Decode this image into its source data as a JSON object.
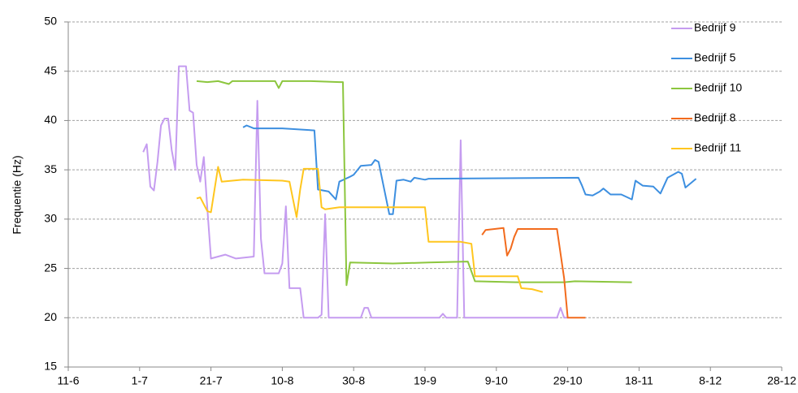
{
  "chart_data": {
    "type": "line",
    "ylabel": "Frequentie (Hz)",
    "xlim": [
      "11-6",
      "28-12"
    ],
    "xticks": [
      "11-6",
      "1-7",
      "21-7",
      "10-8",
      "30-8",
      "19-9",
      "9-10",
      "29-10",
      "18-11",
      "8-12",
      "28-12"
    ],
    "ylim": [
      15,
      50
    ],
    "yticks": [
      15,
      20,
      25,
      30,
      35,
      40,
      45,
      50
    ],
    "grid": true,
    "legend": "upper right",
    "series": [
      {
        "name": "Bedrijf 9",
        "color": "#c59cf0",
        "x": [
          "2-7",
          "3-7",
          "4-7",
          "5-7",
          "6-7",
          "7-7",
          "8-7",
          "9-7",
          "10-7",
          "11-7",
          "12-7",
          "14-7",
          "15-7",
          "16-7",
          "17-7",
          "18-7",
          "19-7",
          "20-7",
          "21-7",
          "25-7",
          "28-7",
          "2-8",
          "3-8",
          "4-8",
          "5-8",
          "9-8",
          "10-8",
          "11-8",
          "12-8",
          "15-8",
          "16-8",
          "20-8",
          "21-8",
          "22-8",
          "23-8",
          "1-9",
          "2-9",
          "3-9",
          "4-9",
          "23-9",
          "24-9",
          "25-9",
          "28-9",
          "29-9",
          "30-9",
          "26-10",
          "27-10",
          "28-10",
          "29-10"
        ],
        "values": [
          36.8,
          37.6,
          33.3,
          32.9,
          35.8,
          39.5,
          40.2,
          40.2,
          37,
          35,
          45.5,
          45.5,
          41,
          40.8,
          35.5,
          33.8,
          36.3,
          31,
          26,
          26.4,
          26,
          26.2,
          42,
          28,
          24.5,
          24.5,
          25.5,
          31.3,
          23,
          23,
          20,
          20,
          20.3,
          30.5,
          20,
          20,
          21,
          21,
          20,
          20,
          20.4,
          20,
          20,
          38,
          20,
          20,
          21,
          20,
          20
        ]
      },
      {
        "name": "Bedrijf 5",
        "color": "#3d8fe0",
        "x": [
          "30-7",
          "31-7",
          "2-8",
          "10-8",
          "19-8",
          "20-8",
          "23-8",
          "25-8",
          "26-8",
          "29-8",
          "30-8",
          "1-9",
          "4-9",
          "5-9",
          "6-9",
          "9-9",
          "10-9",
          "11-9",
          "13-9",
          "15-9",
          "16-9",
          "19-9",
          "20-9",
          "1-11",
          "2-11",
          "3-11",
          "5-11",
          "7-11",
          "8-11",
          "10-11",
          "13-11",
          "16-11",
          "17-11",
          "19-11",
          "22-11",
          "24-11",
          "26-11",
          "29-11",
          "30-11",
          "1-12",
          "4-12"
        ],
        "values": [
          39.3,
          39.5,
          39.2,
          39.2,
          39,
          33,
          32.8,
          32,
          33.8,
          34.3,
          34.5,
          35.4,
          35.5,
          36,
          35.8,
          30.5,
          30.5,
          33.9,
          34,
          33.8,
          34.2,
          34,
          34.1,
          34.2,
          33.4,
          32.5,
          32.4,
          32.8,
          33.1,
          32.5,
          32.5,
          32,
          33.9,
          33.4,
          33.3,
          32.6,
          34.2,
          34.8,
          34.6,
          33.2,
          34.1
        ]
      },
      {
        "name": "Bedrijf 10",
        "color": "#8cc63e",
        "x": [
          "17-7",
          "20-7",
          "23-7",
          "26-7",
          "27-7",
          "30-7",
          "8-8",
          "9-8",
          "10-8",
          "18-8",
          "26-8",
          "27-8",
          "28-8",
          "29-8",
          "10-9",
          "20-9",
          "1-10",
          "3-10",
          "15-10",
          "28-10",
          "31-10",
          "16-11"
        ],
        "values": [
          44,
          43.9,
          44,
          43.7,
          44,
          44,
          44,
          43.3,
          44,
          44,
          43.9,
          43.9,
          23.3,
          25.6,
          25.5,
          25.6,
          25.7,
          23.7,
          23.6,
          23.6,
          23.7,
          23.6
        ]
      },
      {
        "name": "Bedrijf 8",
        "color": "#f26b1d",
        "x": [
          "5-10",
          "6-10",
          "11-10",
          "12-10",
          "13-10",
          "14-10",
          "15-10",
          "26-10",
          "27-10",
          "28-10",
          "29-10",
          "31-10",
          "3-11"
        ],
        "values": [
          28.4,
          28.9,
          29.1,
          26.3,
          27,
          28.2,
          29,
          29,
          26.5,
          24,
          20,
          20,
          20
        ]
      },
      {
        "name": "Bedrijf 11",
        "color": "#ffc61e",
        "x": [
          "17-7",
          "18-7",
          "20-7",
          "21-7",
          "22-7",
          "23-7",
          "24-7",
          "30-7",
          "10-8",
          "12-8",
          "13-8",
          "14-8",
          "15-8",
          "16-8",
          "20-8",
          "21-8",
          "22-8",
          "26-8",
          "30-8",
          "5-9",
          "19-9",
          "20-9",
          "29-9",
          "2-10",
          "3-10",
          "15-10",
          "16-10",
          "19-10",
          "22-10"
        ],
        "values": [
          32.1,
          32.2,
          30.8,
          30.7,
          33,
          35.3,
          33.8,
          34,
          33.9,
          33.8,
          32,
          30.2,
          33,
          35.1,
          35.1,
          31.2,
          31,
          31.2,
          31.2,
          31.2,
          31.2,
          27.7,
          27.7,
          27.5,
          24.2,
          24.2,
          23,
          22.9,
          22.6
        ]
      }
    ]
  }
}
